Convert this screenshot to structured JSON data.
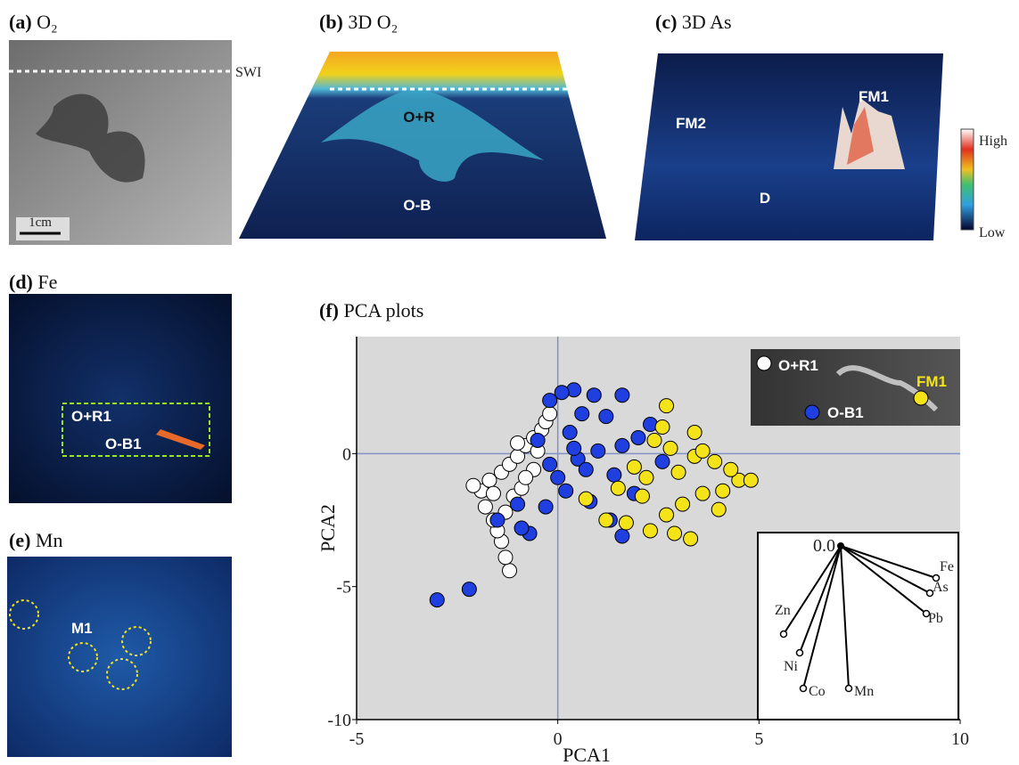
{
  "panels": [
    {
      "letter": "(a)",
      "title": "O₂",
      "labels": [
        "SWI",
        "1cm"
      ]
    },
    {
      "letter": "(b)",
      "title": "3D O₂",
      "labels": [
        "O+R",
        "O-B"
      ]
    },
    {
      "letter": "(c)",
      "title": "3D As",
      "labels": [
        "FM2",
        "FM1",
        "D",
        "High",
        "Low"
      ]
    },
    {
      "letter": "(d)",
      "title": "Fe",
      "labels": [
        "O+R1",
        "O-B1"
      ]
    },
    {
      "letter": "(e)",
      "title": "Mn",
      "labels": [
        "M1"
      ]
    },
    {
      "letter": "(f)",
      "title": "PCA plots",
      "labels": []
    }
  ],
  "chart_data": [
    {
      "type": "scatter",
      "x_label": "PCA1",
      "y_label": "PCA2",
      "xlim": [
        -5,
        10
      ],
      "ylim": [
        -10,
        4.4
      ],
      "xticks": [
        -5,
        0,
        5,
        10
      ],
      "yticks": [
        -10,
        -5,
        0
      ],
      "series": [
        {
          "name": "O+R1",
          "color": "#ffffff",
          "x": [
            -1.2,
            -1.3,
            -1.4,
            -1.5,
            -1.6,
            -1.8,
            -1.9,
            -2.1,
            -1.7,
            -1.4,
            -1.2,
            -1.0,
            -0.8,
            -0.6,
            -0.4,
            -0.3,
            -1.1,
            -1.3,
            -0.9,
            -0.6,
            -0.5,
            -1.6,
            -0.8,
            -1.0,
            -0.2
          ],
          "values": [
            -4.4,
            -3.9,
            -3.3,
            -2.9,
            -2.5,
            -2.0,
            -1.4,
            -1.2,
            -1.0,
            -0.7,
            -0.4,
            -0.1,
            0.3,
            0.6,
            0.9,
            1.2,
            -1.6,
            -2.2,
            -1.3,
            -0.6,
            0.1,
            -1.5,
            -0.9,
            0.4,
            1.5
          ]
        },
        {
          "name": "O-B1",
          "color": "#1f3fe0",
          "x": [
            -3.0,
            -2.2,
            -0.7,
            -0.9,
            -1.5,
            -0.3,
            1.6,
            1.3,
            0.8,
            0.2,
            -0.2,
            0.5,
            1.0,
            1.6,
            2.0,
            2.3,
            1.6,
            0.9,
            0.4,
            0.1,
            -0.2,
            0.6,
            1.2,
            0.3,
            -0.5,
            0.0,
            0.7,
            2.6,
            -1.0,
            1.9,
            0.4,
            1.4
          ],
          "values": [
            -5.5,
            -5.1,
            -3.0,
            -2.8,
            -2.5,
            -2.0,
            -3.1,
            -2.5,
            -1.8,
            -1.4,
            -0.4,
            -0.2,
            0.1,
            0.3,
            0.6,
            1.1,
            2.2,
            2.2,
            2.4,
            2.3,
            2.0,
            1.5,
            1.4,
            0.8,
            0.5,
            -0.9,
            -0.6,
            -0.3,
            -1.9,
            -1.5,
            0.2,
            -0.8
          ]
        },
        {
          "name": "FM1",
          "color": "#f5e31a",
          "x": [
            1.2,
            1.7,
            2.3,
            2.9,
            3.3,
            2.7,
            3.1,
            2.1,
            1.5,
            3.6,
            4.1,
            4.5,
            4.8,
            4.3,
            3.9,
            3.4,
            2.8,
            2.4,
            2.6,
            3.4,
            2.7,
            3.6,
            1.9,
            4.0,
            0.7,
            2.2,
            3.0
          ],
          "values": [
            -2.5,
            -2.6,
            -2.9,
            -3.0,
            -3.2,
            -2.3,
            -1.9,
            -1.6,
            -1.3,
            -1.5,
            -1.4,
            -1.0,
            -1.0,
            -0.6,
            -0.3,
            -0.1,
            0.2,
            0.5,
            1.0,
            0.8,
            1.8,
            0.1,
            -0.5,
            -2.1,
            -1.7,
            -0.9,
            -0.7
          ]
        }
      ]
    },
    {
      "type": "biplot",
      "origin_label": "0.0",
      "xlim": [
        -0.93,
        1.32
      ],
      "ylim": [
        -1.95,
        0.15
      ],
      "series": [
        {
          "names": [
            "Fe",
            "As",
            "Pb",
            "Zn",
            "Ni",
            "Co",
            "Mn"
          ],
          "x": [
            1.07,
            1.0,
            0.96,
            -0.64,
            -0.46,
            -0.42,
            0.09
          ],
          "values": [
            -0.36,
            -0.53,
            -0.76,
            -0.99,
            -1.2,
            -1.6,
            -1.6
          ]
        }
      ]
    }
  ]
}
